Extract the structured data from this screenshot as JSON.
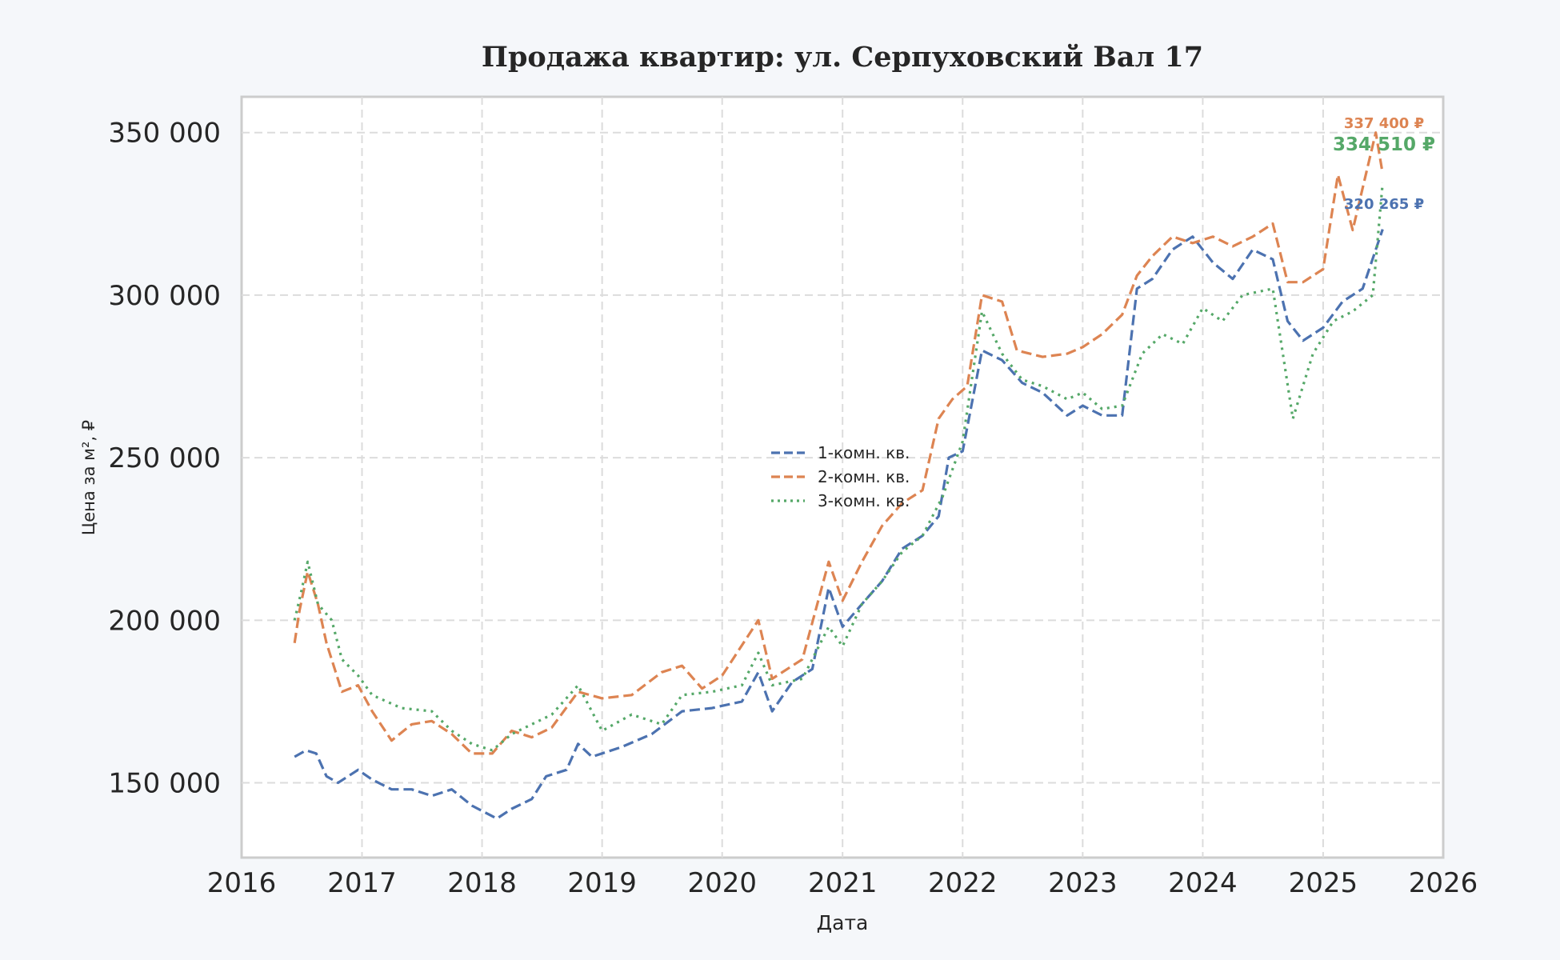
{
  "chart_data": {
    "type": "line",
    "title": "Продажа квартир: ул. Серпуховский Вал 17",
    "xlabel": "Дата",
    "ylabel": "Цена за м², ₽",
    "xlim": [
      "2016-01-01",
      "2026-01-01"
    ],
    "ylim": [
      127000,
      361000
    ],
    "x_ticks": [
      "2016",
      "2017",
      "2018",
      "2019",
      "2020",
      "2021",
      "2022",
      "2023",
      "2024",
      "2025",
      "2026"
    ],
    "y_ticks": [
      150000,
      200000,
      250000,
      300000,
      350000
    ],
    "y_tick_labels": [
      "150 000",
      "200 000",
      "250 000",
      "300 000",
      "350 000"
    ],
    "grid": true,
    "legend_position": "center",
    "series": [
      {
        "name": "1-комн. кв.",
        "color": "#4c72b0",
        "dash": "dashed",
        "points": [
          [
            "2016-06-10",
            158000
          ],
          [
            "2016-07-15",
            160000
          ],
          [
            "2016-08-15",
            159000
          ],
          [
            "2016-09-15",
            152000
          ],
          [
            "2016-10-20",
            150000
          ],
          [
            "2016-12-20",
            154000
          ],
          [
            "2017-02-01",
            151000
          ],
          [
            "2017-04-01",
            148000
          ],
          [
            "2017-06-01",
            148000
          ],
          [
            "2017-08-01",
            146000
          ],
          [
            "2017-10-01",
            148000
          ],
          [
            "2017-12-01",
            143000
          ],
          [
            "2018-02-15",
            139000
          ],
          [
            "2018-04-01",
            142000
          ],
          [
            "2018-06-01",
            145000
          ],
          [
            "2018-07-15",
            152000
          ],
          [
            "2018-09-15",
            154000
          ],
          [
            "2018-10-20",
            162000
          ],
          [
            "2018-12-01",
            158000
          ],
          [
            "2019-03-01",
            161000
          ],
          [
            "2019-06-01",
            165000
          ],
          [
            "2019-09-01",
            172000
          ],
          [
            "2019-12-01",
            173000
          ],
          [
            "2020-03-01",
            175000
          ],
          [
            "2020-04-20",
            184000
          ],
          [
            "2020-06-01",
            172000
          ],
          [
            "2020-08-01",
            181000
          ],
          [
            "2020-10-01",
            185000
          ],
          [
            "2020-11-20",
            210000
          ],
          [
            "2021-01-01",
            198000
          ],
          [
            "2021-03-01",
            205000
          ],
          [
            "2021-05-01",
            212000
          ],
          [
            "2021-07-01",
            222000
          ],
          [
            "2021-09-01",
            226000
          ],
          [
            "2021-10-20",
            232000
          ],
          [
            "2021-11-20",
            250000
          ],
          [
            "2022-01-01",
            252000
          ],
          [
            "2022-03-01",
            283000
          ],
          [
            "2022-05-01",
            280000
          ],
          [
            "2022-07-01",
            273000
          ],
          [
            "2022-09-01",
            270000
          ],
          [
            "2022-11-15",
            263000
          ],
          [
            "2023-01-01",
            266000
          ],
          [
            "2023-03-01",
            263000
          ],
          [
            "2023-05-01",
            263000
          ],
          [
            "2023-06-15",
            302000
          ],
          [
            "2023-08-01",
            305000
          ],
          [
            "2023-10-01",
            314000
          ],
          [
            "2023-12-01",
            318000
          ],
          [
            "2024-02-01",
            310000
          ],
          [
            "2024-04-01",
            305000
          ],
          [
            "2024-06-01",
            314000
          ],
          [
            "2024-08-01",
            311000
          ],
          [
            "2024-09-15",
            292000
          ],
          [
            "2024-11-01",
            286000
          ],
          [
            "2025-01-01",
            290000
          ],
          [
            "2025-03-01",
            298000
          ],
          [
            "2025-05-01",
            302000
          ],
          [
            "2025-07-01",
            320265
          ]
        ]
      },
      {
        "name": "2-комн. кв.",
        "color": "#dd8452",
        "dash": "dashed",
        "points": [
          [
            "2016-06-10",
            193000
          ],
          [
            "2016-06-25",
            203000
          ],
          [
            "2016-07-20",
            215000
          ],
          [
            "2016-08-20",
            205000
          ],
          [
            "2016-09-15",
            193000
          ],
          [
            "2016-11-01",
            178000
          ],
          [
            "2016-12-20",
            180000
          ],
          [
            "2017-02-01",
            172000
          ],
          [
            "2017-04-01",
            163000
          ],
          [
            "2017-06-01",
            168000
          ],
          [
            "2017-08-01",
            169000
          ],
          [
            "2017-10-01",
            165000
          ],
          [
            "2017-12-01",
            159000
          ],
          [
            "2018-02-01",
            159000
          ],
          [
            "2018-04-01",
            166000
          ],
          [
            "2018-06-01",
            164000
          ],
          [
            "2018-08-01",
            167000
          ],
          [
            "2018-10-20",
            178000
          ],
          [
            "2019-01-01",
            176000
          ],
          [
            "2019-04-01",
            177000
          ],
          [
            "2019-07-01",
            184000
          ],
          [
            "2019-09-01",
            186000
          ],
          [
            "2019-11-01",
            179000
          ],
          [
            "2020-01-01",
            183000
          ],
          [
            "2020-04-20",
            200000
          ],
          [
            "2020-06-01",
            182000
          ],
          [
            "2020-09-01",
            188000
          ],
          [
            "2020-11-20",
            218000
          ],
          [
            "2021-01-01",
            206000
          ],
          [
            "2021-03-01",
            218000
          ],
          [
            "2021-05-01",
            229000
          ],
          [
            "2021-07-01",
            236000
          ],
          [
            "2021-09-01",
            240000
          ],
          [
            "2021-10-20",
            262000
          ],
          [
            "2021-12-01",
            268000
          ],
          [
            "2022-01-15",
            272000
          ],
          [
            "2022-03-01",
            300000
          ],
          [
            "2022-05-01",
            298000
          ],
          [
            "2022-06-15",
            283000
          ],
          [
            "2022-09-01",
            281000
          ],
          [
            "2022-11-15",
            282000
          ],
          [
            "2023-01-01",
            284000
          ],
          [
            "2023-03-01",
            288000
          ],
          [
            "2023-05-01",
            294000
          ],
          [
            "2023-06-15",
            306000
          ],
          [
            "2023-08-01",
            312000
          ],
          [
            "2023-10-01",
            318000
          ],
          [
            "2023-12-01",
            316000
          ],
          [
            "2024-02-01",
            318000
          ],
          [
            "2024-04-01",
            315000
          ],
          [
            "2024-06-01",
            318000
          ],
          [
            "2024-08-01",
            322000
          ],
          [
            "2024-09-15",
            304000
          ],
          [
            "2024-11-01",
            304000
          ],
          [
            "2025-01-01",
            308000
          ],
          [
            "2025-02-15",
            337000
          ],
          [
            "2025-04-01",
            320000
          ],
          [
            "2025-06-10",
            350000
          ],
          [
            "2025-07-01",
            337400
          ]
        ]
      },
      {
        "name": "3-комн. кв.",
        "color": "#55a868",
        "dash": "dotted",
        "points": [
          [
            "2016-06-10",
            200000
          ],
          [
            "2016-07-01",
            209000
          ],
          [
            "2016-07-20",
            218000
          ],
          [
            "2016-08-20",
            205000
          ],
          [
            "2016-10-01",
            200000
          ],
          [
            "2016-11-01",
            188000
          ],
          [
            "2016-12-20",
            183000
          ],
          [
            "2017-02-01",
            177000
          ],
          [
            "2017-05-01",
            173000
          ],
          [
            "2017-08-01",
            172000
          ],
          [
            "2017-10-01",
            166000
          ],
          [
            "2017-12-01",
            162000
          ],
          [
            "2018-02-01",
            160000
          ],
          [
            "2018-04-01",
            165000
          ],
          [
            "2018-06-01",
            168000
          ],
          [
            "2018-08-01",
            171000
          ],
          [
            "2018-10-20",
            180000
          ],
          [
            "2019-01-01",
            166000
          ],
          [
            "2019-04-01",
            171000
          ],
          [
            "2019-07-01",
            168000
          ],
          [
            "2019-09-01",
            177000
          ],
          [
            "2019-12-01",
            178000
          ],
          [
            "2020-03-01",
            180000
          ],
          [
            "2020-04-20",
            190000
          ],
          [
            "2020-06-01",
            180000
          ],
          [
            "2020-09-01",
            182000
          ],
          [
            "2020-11-20",
            198000
          ],
          [
            "2021-01-01",
            192000
          ],
          [
            "2021-03-01",
            205000
          ],
          [
            "2021-05-01",
            212000
          ],
          [
            "2021-07-01",
            221000
          ],
          [
            "2021-09-01",
            226000
          ],
          [
            "2021-11-01",
            238000
          ],
          [
            "2022-01-01",
            255000
          ],
          [
            "2022-03-01",
            295000
          ],
          [
            "2022-05-01",
            282000
          ],
          [
            "2022-07-01",
            274000
          ],
          [
            "2022-09-01",
            272000
          ],
          [
            "2022-11-15",
            268000
          ],
          [
            "2023-01-01",
            270000
          ],
          [
            "2023-03-01",
            265000
          ],
          [
            "2023-05-01",
            266000
          ],
          [
            "2023-07-01",
            282000
          ],
          [
            "2023-09-01",
            288000
          ],
          [
            "2023-11-01",
            285000
          ],
          [
            "2024-01-01",
            296000
          ],
          [
            "2024-03-01",
            292000
          ],
          [
            "2024-05-01",
            300000
          ],
          [
            "2024-08-01",
            302000
          ],
          [
            "2024-10-01",
            262000
          ],
          [
            "2024-12-01",
            282000
          ],
          [
            "2025-02-01",
            292000
          ],
          [
            "2025-04-01",
            295000
          ],
          [
            "2025-06-01",
            300000
          ],
          [
            "2025-07-01",
            334510
          ]
        ]
      }
    ],
    "annotations": [
      {
        "text": "337 400 ₽",
        "series": "2-комн. кв.",
        "color": "#dd8452",
        "size": "small"
      },
      {
        "text": "334 510 ₽",
        "series": "3-комн. кв.",
        "color": "#55a868",
        "size": "large"
      },
      {
        "text": "320 265 ₽",
        "series": "1-комн. кв.",
        "color": "#4c72b0",
        "size": "small"
      }
    ]
  }
}
